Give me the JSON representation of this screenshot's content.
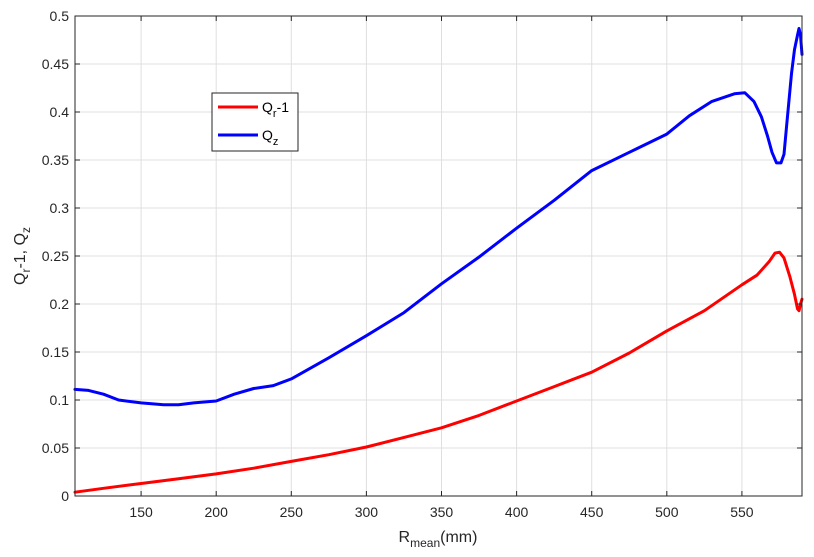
{
  "chart_data": {
    "type": "line",
    "xlabel": {
      "main": "R",
      "sub": "mean",
      "tail": "(mm)"
    },
    "ylabel": {
      "parts": [
        {
          "text": "Q",
          "sub": false
        },
        {
          "text": "r",
          "sub": true
        },
        {
          "text": "-1, Q",
          "sub": false
        },
        {
          "text": "z",
          "sub": true
        }
      ]
    },
    "xlim": [
      106,
      590
    ],
    "ylim": [
      0,
      0.5
    ],
    "xticks": [
      150,
      200,
      250,
      300,
      350,
      400,
      450,
      500,
      550
    ],
    "yticks": [
      0,
      0.05,
      0.1,
      0.15,
      0.2,
      0.25,
      0.3,
      0.35,
      0.4,
      0.45,
      0.5
    ],
    "xtick_labels": [
      "150",
      "200",
      "250",
      "300",
      "350",
      "400",
      "450",
      "500",
      "550"
    ],
    "ytick_labels": [
      "0",
      "0.05",
      "0.1",
      "0.15",
      "0.2",
      "0.25",
      "0.3",
      "0.35",
      "0.4",
      "0.45",
      "0.5"
    ],
    "grid": true,
    "legend_position": "upper-left",
    "series": [
      {
        "label_main": "Q",
        "label_sub": "r",
        "label_tail": "-1",
        "color": "#ff0000",
        "x": [
          106,
          125,
          150,
          175,
          200,
          225,
          250,
          275,
          300,
          325,
          350,
          375,
          400,
          425,
          450,
          475,
          500,
          525,
          550,
          560,
          568,
          572,
          575,
          578,
          582,
          585,
          587,
          588,
          589,
          590
        ],
        "y": [
          0.004,
          0.008,
          0.013,
          0.018,
          0.023,
          0.029,
          0.036,
          0.043,
          0.051,
          0.061,
          0.071,
          0.084,
          0.099,
          0.114,
          0.129,
          0.149,
          0.172,
          0.193,
          0.22,
          0.23,
          0.244,
          0.253,
          0.254,
          0.248,
          0.228,
          0.21,
          0.195,
          0.193,
          0.2,
          0.205
        ]
      },
      {
        "label_main": "Q",
        "label_sub": "z",
        "label_tail": "",
        "color": "#0000ff",
        "x": [
          106,
          115,
          125,
          135,
          150,
          165,
          175,
          185,
          200,
          212,
          225,
          238,
          250,
          275,
          300,
          325,
          350,
          375,
          400,
          425,
          450,
          475,
          500,
          515,
          530,
          545,
          552,
          558,
          563,
          567,
          570,
          573,
          576,
          578,
          580,
          583,
          585,
          587,
          588,
          589,
          590
        ],
        "y": [
          0.111,
          0.11,
          0.106,
          0.1,
          0.097,
          0.095,
          0.095,
          0.097,
          0.099,
          0.106,
          0.112,
          0.115,
          0.122,
          0.144,
          0.167,
          0.191,
          0.221,
          0.249,
          0.279,
          0.308,
          0.339,
          0.358,
          0.377,
          0.396,
          0.411,
          0.419,
          0.42,
          0.411,
          0.395,
          0.375,
          0.358,
          0.347,
          0.347,
          0.356,
          0.39,
          0.44,
          0.465,
          0.48,
          0.487,
          0.48,
          0.46
        ]
      }
    ]
  }
}
